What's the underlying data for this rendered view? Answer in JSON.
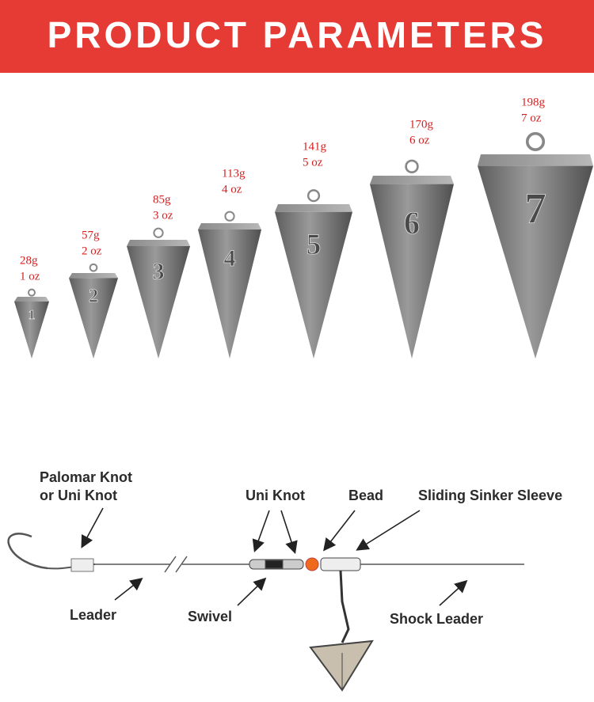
{
  "header": {
    "title": "PRODUCT PARAMETERS"
  },
  "sinkers": [
    {
      "number": "1",
      "weight": "28g",
      "ounces": "1 oz"
    },
    {
      "number": "2",
      "weight": "57g",
      "ounces": "2 oz"
    },
    {
      "number": "3",
      "weight": "85g",
      "ounces": "3 oz"
    },
    {
      "number": "4",
      "weight": "113g",
      "ounces": "4 oz"
    },
    {
      "number": "5",
      "weight": "141g",
      "ounces": "5 oz"
    },
    {
      "number": "6",
      "weight": "170g",
      "ounces": "6 oz"
    },
    {
      "number": "7",
      "weight": "198g",
      "ounces": "7 oz"
    }
  ],
  "diagram": {
    "palomar_knot": [
      "Palomar Knot",
      "or Uni Knot"
    ],
    "uni_knot": "Uni Knot",
    "bead": "Bead",
    "sleeve": "Sliding Sinker Sleeve",
    "leader": "Leader",
    "swivel": "Swivel",
    "shock_leader": "Shock Leader"
  }
}
